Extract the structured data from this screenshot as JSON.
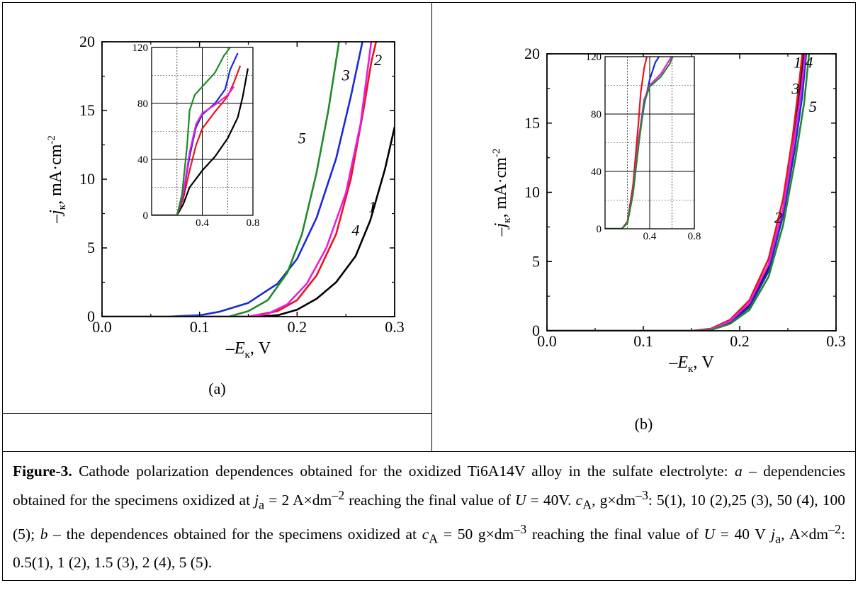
{
  "subfig_a_label": "(a)",
  "subfig_b_label": "(b)",
  "caption": {
    "fig_label": "Figure-3.",
    "text_html": " Cathode polarization dependences obtained for the oxidized Ti6A14V alloy in the sulfate electrolyte: <i>a</i> – dependencies obtained for the specimens oxidized at <i>j</i><sub>a</sub> = 2 A×dm<sup>–2</sup> reaching the final value of <i>U</i> = 40V. <i>c</i><sub>A</sub>, g×dm<sup>–3</sup>: 5(1), 10 (2),25 (3), 50 (4), 100 (5); <i>b</i> – the dependences obtained for the specimens oxidized at <i>c</i><sub>A</sub> = 50 g×dm<sup>–3</sup> reaching the final value of <i>U</i> = 40 V <i>j</i><sub>a</sub>, A×dm<sup>–2</sup>: 0.5(1), 1 (2), 1.5 (3), 2 (4), 5 (5)."
  },
  "colors": {
    "s1": "#000000",
    "s2": "#e8141e",
    "s3": "#1a2bd6",
    "s4": "#e81ee0",
    "s5": "#1f8a2a"
  },
  "chart_data": [
    {
      "type": "line",
      "panel": "a",
      "xlabel": "–E_к, V",
      "ylabel": "–j_к, mA·cm^-2",
      "xlim": [
        0.0,
        0.3
      ],
      "ylim": [
        0,
        20
      ],
      "xticks": [
        "0.0",
        "0.1",
        "0.2",
        "0.3"
      ],
      "yticks": [
        "0",
        "5",
        "10",
        "15",
        "20"
      ],
      "series": [
        {
          "name": "1",
          "color": "#000000",
          "label_at": [
            0.277,
            7.6
          ],
          "points": [
            [
              0.0,
              0
            ],
            [
              0.16,
              0
            ],
            [
              0.18,
              0.1
            ],
            [
              0.2,
              0.5
            ],
            [
              0.22,
              1.3
            ],
            [
              0.24,
              2.5
            ],
            [
              0.26,
              4.4
            ],
            [
              0.275,
              7
            ],
            [
              0.29,
              10.7
            ],
            [
              0.3,
              13.8
            ]
          ]
        },
        {
          "name": "2",
          "color": "#e8141e",
          "label_at": [
            0.283,
            18.3
          ],
          "points": [
            [
              0.0,
              0
            ],
            [
              0.15,
              0
            ],
            [
              0.18,
              0.4
            ],
            [
              0.2,
              1.2
            ],
            [
              0.22,
              3.0
            ],
            [
              0.24,
              6.0
            ],
            [
              0.255,
              10
            ],
            [
              0.268,
              15
            ],
            [
              0.276,
              18.5
            ],
            [
              0.281,
              20
            ]
          ]
        },
        {
          "name": "3",
          "color": "#1a2bd6",
          "label_at": [
            0.25,
            17.2
          ],
          "points": [
            [
              0.065,
              0
            ],
            [
              0.1,
              0.1
            ],
            [
              0.12,
              0.35
            ],
            [
              0.15,
              1
            ],
            [
              0.18,
              2.4
            ],
            [
              0.2,
              4.2
            ],
            [
              0.22,
              7.2
            ],
            [
              0.24,
              11.5
            ],
            [
              0.255,
              16
            ],
            [
              0.267,
              20
            ]
          ]
        },
        {
          "name": "4",
          "color": "#e81ee0",
          "label_at": [
            0.26,
            5.9
          ],
          "points": [
            [
              0.0,
              0
            ],
            [
              0.15,
              0
            ],
            [
              0.17,
              0.2
            ],
            [
              0.19,
              0.9
            ],
            [
              0.21,
              2.4
            ],
            [
              0.23,
              5
            ],
            [
              0.25,
              9
            ],
            [
              0.265,
              14
            ],
            [
              0.276,
              20
            ]
          ]
        },
        {
          "name": "5",
          "color": "#1f8a2a",
          "label_at": [
            0.205,
            12.6
          ],
          "points": [
            [
              0.0,
              0
            ],
            [
              0.13,
              0
            ],
            [
              0.15,
              0.4
            ],
            [
              0.17,
              1.2
            ],
            [
              0.19,
              3.2
            ],
            [
              0.205,
              6
            ],
            [
              0.22,
              10.5
            ],
            [
              0.232,
              15
            ],
            [
              0.243,
              20
            ]
          ]
        }
      ],
      "inset": {
        "xlim": [
          0.0,
          0.8
        ],
        "ylim": [
          0,
          120
        ],
        "xticks": [
          "0.4",
          "0.8"
        ],
        "yticks": [
          "0",
          "40",
          "80",
          "120"
        ],
        "series": [
          {
            "name": "1",
            "color": "#000000",
            "points": [
              [
                0.0,
                0
              ],
              [
                0.2,
                0
              ],
              [
                0.25,
                8
              ],
              [
                0.3,
                20
              ],
              [
                0.4,
                32
              ],
              [
                0.5,
                42
              ],
              [
                0.6,
                55
              ],
              [
                0.68,
                70
              ],
              [
                0.72,
                85
              ],
              [
                0.76,
                105
              ]
            ]
          },
          {
            "name": "2",
            "color": "#e8141e",
            "points": [
              [
                0.0,
                0
              ],
              [
                0.2,
                0
              ],
              [
                0.25,
                12
              ],
              [
                0.3,
                32
              ],
              [
                0.35,
                50
              ],
              [
                0.4,
                62
              ],
              [
                0.5,
                74
              ],
              [
                0.6,
                85
              ],
              [
                0.65,
                95
              ],
              [
                0.7,
                107
              ]
            ]
          },
          {
            "name": "3",
            "color": "#1a2bd6",
            "points": [
              [
                0.0,
                0
              ],
              [
                0.2,
                0
              ],
              [
                0.25,
                15
              ],
              [
                0.3,
                42
              ],
              [
                0.35,
                63
              ],
              [
                0.4,
                72
              ],
              [
                0.5,
                80
              ],
              [
                0.58,
                90
              ],
              [
                0.62,
                104
              ],
              [
                0.68,
                116
              ]
            ]
          },
          {
            "name": "4",
            "color": "#e81ee0",
            "points": [
              [
                0.0,
                0
              ],
              [
                0.2,
                0
              ],
              [
                0.25,
                16
              ],
              [
                0.3,
                45
              ],
              [
                0.35,
                65
              ],
              [
                0.4,
                73
              ],
              [
                0.5,
                79
              ],
              [
                0.6,
                86
              ],
              [
                0.65,
                92
              ]
            ]
          },
          {
            "name": "5",
            "color": "#1f8a2a",
            "points": [
              [
                0.0,
                0
              ],
              [
                0.2,
                0
              ],
              [
                0.24,
                15
              ],
              [
                0.28,
                50
              ],
              [
                0.3,
                75
              ],
              [
                0.34,
                86
              ],
              [
                0.4,
                92
              ],
              [
                0.5,
                102
              ],
              [
                0.57,
                114
              ],
              [
                0.62,
                120
              ]
            ]
          }
        ]
      }
    },
    {
      "type": "line",
      "panel": "b",
      "xlabel": "–E_к, V",
      "ylabel": "–j_к, mA·cm^-2",
      "xlim": [
        0.0,
        0.3
      ],
      "ylim": [
        0,
        20
      ],
      "xticks": [
        "0.0",
        "0.1",
        "0.2",
        "0.3"
      ],
      "yticks": [
        "0",
        "5",
        "10",
        "15",
        "20"
      ],
      "series": [
        {
          "name": "1",
          "color": "#000000",
          "label_at": [
            0.26,
            19.0
          ],
          "points": [
            [
              0.0,
              0
            ],
            [
              0.15,
              0
            ],
            [
              0.17,
              0.1
            ],
            [
              0.19,
              0.6
            ],
            [
              0.21,
              1.8
            ],
            [
              0.23,
              4.5
            ],
            [
              0.245,
              8.5
            ],
            [
              0.255,
              13
            ],
            [
              0.262,
              17
            ],
            [
              0.266,
              20
            ]
          ]
        },
        {
          "name": "2",
          "color": "#e8141e",
          "label_at": [
            0.24,
            7.8
          ],
          "points": [
            [
              0.0,
              0
            ],
            [
              0.15,
              0
            ],
            [
              0.17,
              0.15
            ],
            [
              0.19,
              0.8
            ],
            [
              0.21,
              2.2
            ],
            [
              0.23,
              5.2
            ],
            [
              0.245,
              9.5
            ],
            [
              0.255,
              14
            ],
            [
              0.262,
              18
            ],
            [
              0.265,
              20
            ]
          ]
        },
        {
          "name": "3",
          "color": "#1a2bd6",
          "label_at": [
            0.258,
            17.1
          ],
          "points": [
            [
              0.0,
              0
            ],
            [
              0.15,
              0
            ],
            [
              0.17,
              0.1
            ],
            [
              0.19,
              0.6
            ],
            [
              0.21,
              1.7
            ],
            [
              0.23,
              4.3
            ],
            [
              0.245,
              8.3
            ],
            [
              0.257,
              13
            ],
            [
              0.265,
              17
            ],
            [
              0.269,
              20
            ]
          ]
        },
        {
          "name": "4",
          "color": "#e81ee0",
          "label_at": [
            0.272,
            19.0
          ],
          "points": [
            [
              0.0,
              0
            ],
            [
              0.15,
              0
            ],
            [
              0.17,
              0.1
            ],
            [
              0.19,
              0.7
            ],
            [
              0.21,
              2.0
            ],
            [
              0.23,
              4.8
            ],
            [
              0.245,
              8.8
            ],
            [
              0.256,
              13.5
            ],
            [
              0.264,
              17.5
            ],
            [
              0.268,
              20
            ]
          ]
        },
        {
          "name": "5",
          "color": "#1f8a2a",
          "label_at": [
            0.276,
            15.8
          ],
          "points": [
            [
              0.0,
              0
            ],
            [
              0.15,
              0
            ],
            [
              0.17,
              0.05
            ],
            [
              0.19,
              0.5
            ],
            [
              0.21,
              1.5
            ],
            [
              0.23,
              3.9
            ],
            [
              0.245,
              7.6
            ],
            [
              0.258,
              12.5
            ],
            [
              0.267,
              16.5
            ],
            [
              0.272,
              20
            ]
          ]
        }
      ],
      "inset": {
        "xlim": [
          0.0,
          0.8
        ],
        "ylim": [
          0,
          120
        ],
        "xticks": [
          "0.4",
          "0.8"
        ],
        "yticks": [
          "0",
          "40",
          "80",
          "120"
        ],
        "series": [
          {
            "name": "1",
            "color": "#e8141e",
            "points": [
              [
                0.0,
                0
              ],
              [
                0.15,
                0
              ],
              [
                0.2,
                5
              ],
              [
                0.25,
                30
              ],
              [
                0.3,
                75
              ],
              [
                0.32,
                95
              ],
              [
                0.35,
                112
              ],
              [
                0.38,
                122
              ],
              [
                0.4,
                130
              ]
            ]
          },
          {
            "name": "2",
            "color": "#1a2bd6",
            "points": [
              [
                0.0,
                0
              ],
              [
                0.15,
                0
              ],
              [
                0.2,
                4
              ],
              [
                0.25,
                25
              ],
              [
                0.3,
                60
              ],
              [
                0.35,
                86
              ],
              [
                0.4,
                104
              ],
              [
                0.45,
                116
              ],
              [
                0.5,
                122
              ],
              [
                0.6,
                127
              ]
            ]
          },
          {
            "name": "3",
            "color": "#e81ee0",
            "points": [
              [
                0.0,
                0
              ],
              [
                0.15,
                0
              ],
              [
                0.2,
                4
              ],
              [
                0.25,
                25
              ],
              [
                0.3,
                62
              ],
              [
                0.35,
                90
              ],
              [
                0.4,
                100
              ],
              [
                0.5,
                108
              ],
              [
                0.58,
                118
              ],
              [
                0.65,
                128
              ]
            ]
          },
          {
            "name": "4",
            "color": "#1f8a2a",
            "points": [
              [
                0.0,
                0
              ],
              [
                0.15,
                0
              ],
              [
                0.2,
                4
              ],
              [
                0.25,
                24
              ],
              [
                0.3,
                58
              ],
              [
                0.35,
                88
              ],
              [
                0.4,
                99
              ],
              [
                0.5,
                106
              ],
              [
                0.58,
                115
              ],
              [
                0.65,
                128
              ]
            ]
          }
        ]
      }
    }
  ]
}
